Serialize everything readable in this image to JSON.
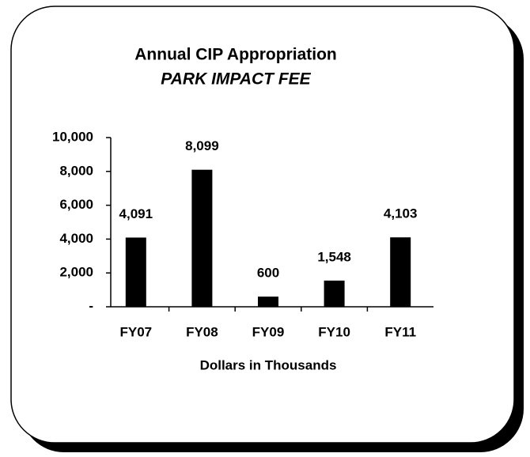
{
  "chart_data": {
    "type": "bar",
    "title": "Annual CIP Appropriation",
    "subtitle": "PARK IMPACT FEE",
    "x_label": "Dollars in Thousands",
    "categories": [
      "FY07",
      "FY08",
      "FY09",
      "FY10",
      "FY11"
    ],
    "values": [
      4091,
      8099,
      600,
      1548,
      4103
    ],
    "value_labels": [
      "4,091",
      "8,099",
      "600",
      "1,548",
      "4,103"
    ],
    "color": "#000000",
    "ylim": [
      0,
      10000
    ],
    "yticks": [
      {
        "value": 0,
        "label": "-"
      },
      {
        "value": 2000,
        "label": "2,000"
      },
      {
        "value": 4000,
        "label": "4,000"
      },
      {
        "value": 6000,
        "label": "6,000"
      },
      {
        "value": 8000,
        "label": "8,000"
      },
      {
        "value": 10000,
        "label": "10,000"
      }
    ],
    "grid": false
  }
}
